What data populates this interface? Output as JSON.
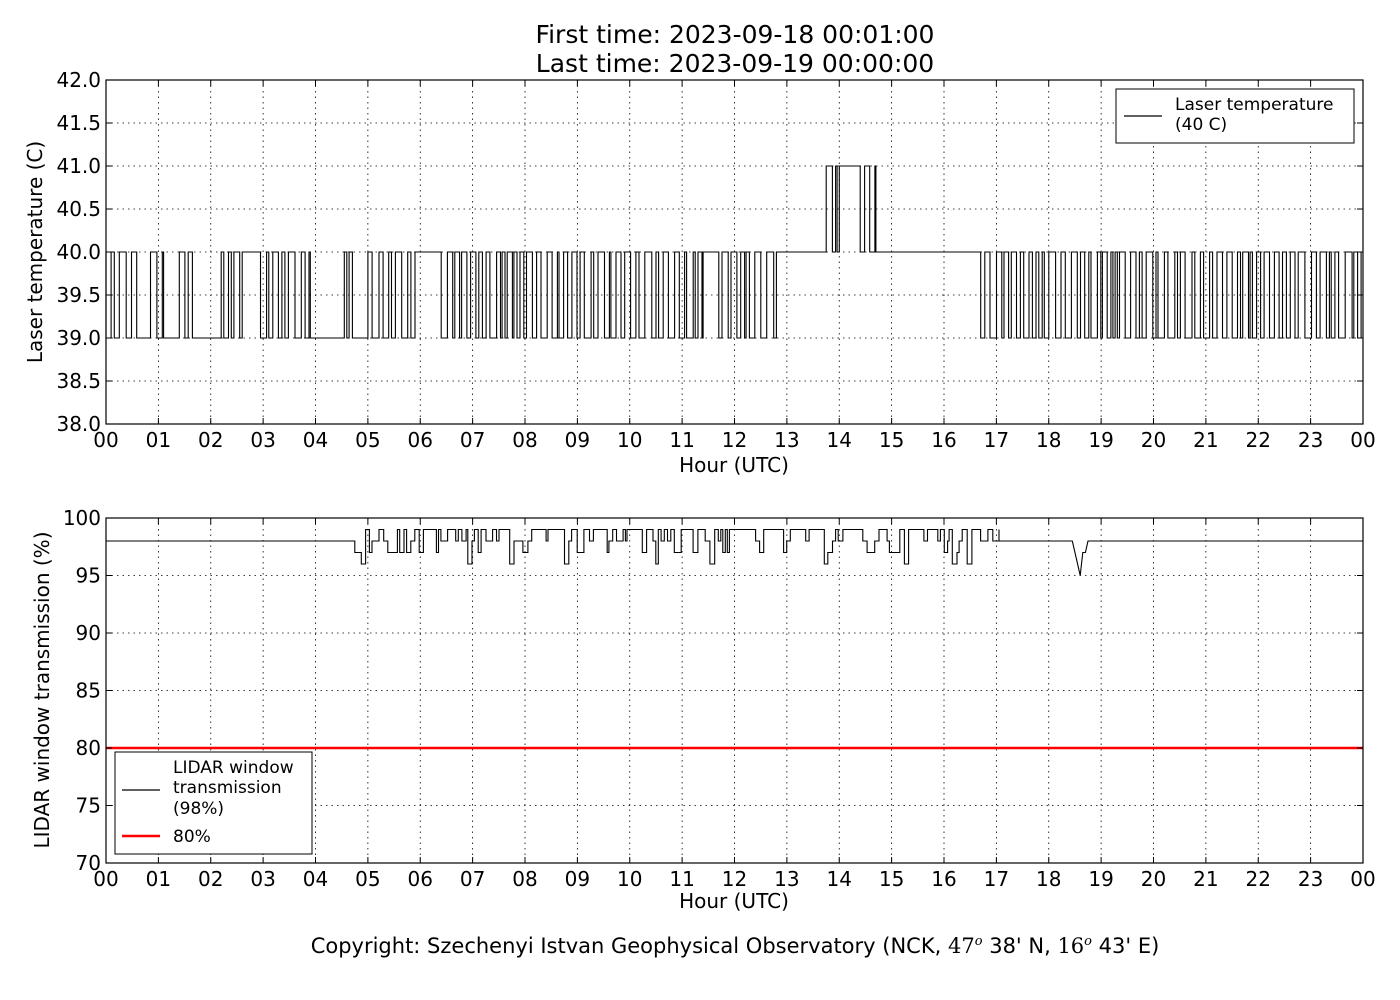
{
  "figure": {
    "title_line1": "First time: 2023-09-18 00:01:00",
    "title_line2": "Last time: 2023-09-19 00:00:00",
    "copyright": {
      "prefix": "Copyright: Szechenyi Istvan Geophysical Observatory (NCK, ",
      "lat_deg": "47",
      "lat_min": " 38' N, ",
      "lon_deg": "16",
      "lon_min": " 43' E)",
      "degree_symbol": "o"
    }
  },
  "chart_data": [
    {
      "type": "line",
      "title": "",
      "xlabel": "Hour (UTC)",
      "ylabel": "Laser temperature (C)",
      "xlim": [
        0,
        24
      ],
      "ylim": [
        38.0,
        42.0
      ],
      "x_tick_labels": [
        "00",
        "01",
        "02",
        "03",
        "04",
        "05",
        "06",
        "07",
        "08",
        "09",
        "10",
        "11",
        "12",
        "13",
        "14",
        "15",
        "16",
        "17",
        "18",
        "19",
        "20",
        "21",
        "22",
        "23",
        "00"
      ],
      "y_tick_labels": [
        "38.0",
        "38.5",
        "39.0",
        "39.5",
        "40.0",
        "40.5",
        "41.0",
        "41.5",
        "42.0"
      ],
      "grid": true,
      "legend": {
        "position": "top-right",
        "entries": [
          {
            "label_line1": "Laser temperature",
            "label_line2": "(40 C)",
            "color": "#000000"
          }
        ]
      },
      "series": [
        {
          "name": "Laser temperature (40 C)",
          "color": "#000000",
          "low_level": 39.0,
          "high_level": 40.0,
          "peak_level": 41.0,
          "segments": [
            {
              "start": 0.0,
              "end": 0.6,
              "mode": "toggle"
            },
            {
              "start": 0.6,
              "end": 0.85,
              "mode": "low"
            },
            {
              "start": 0.85,
              "end": 1.1,
              "mode": "toggle"
            },
            {
              "start": 1.1,
              "end": 1.4,
              "mode": "low"
            },
            {
              "start": 1.4,
              "end": 1.65,
              "mode": "toggle"
            },
            {
              "start": 1.65,
              "end": 2.2,
              "mode": "low"
            },
            {
              "start": 2.2,
              "end": 2.6,
              "mode": "toggle"
            },
            {
              "start": 2.6,
              "end": 2.95,
              "mode": "high"
            },
            {
              "start": 2.95,
              "end": 3.9,
              "mode": "toggle"
            },
            {
              "start": 3.9,
              "end": 4.55,
              "mode": "low"
            },
            {
              "start": 4.55,
              "end": 4.75,
              "mode": "toggle"
            },
            {
              "start": 4.75,
              "end": 5.0,
              "mode": "low"
            },
            {
              "start": 5.0,
              "end": 5.9,
              "mode": "toggle"
            },
            {
              "start": 5.9,
              "end": 6.4,
              "mode": "high"
            },
            {
              "start": 6.4,
              "end": 11.4,
              "mode": "toggle"
            },
            {
              "start": 11.4,
              "end": 11.7,
              "mode": "high"
            },
            {
              "start": 11.7,
              "end": 12.8,
              "mode": "toggle"
            },
            {
              "start": 12.8,
              "end": 13.75,
              "mode": "high"
            },
            {
              "start": 13.75,
              "end": 14.0,
              "mode": "toggle_up"
            },
            {
              "start": 14.0,
              "end": 14.4,
              "mode": "peak"
            },
            {
              "start": 14.4,
              "end": 14.7,
              "mode": "toggle_up"
            },
            {
              "start": 14.7,
              "end": 16.7,
              "mode": "high"
            },
            {
              "start": 16.7,
              "end": 24.0,
              "mode": "toggle"
            }
          ]
        }
      ]
    },
    {
      "type": "line",
      "title": "",
      "xlabel": "Hour (UTC)",
      "ylabel": "LIDAR window transmission (%)",
      "xlim": [
        0,
        24
      ],
      "ylim": [
        70,
        100
      ],
      "x_tick_labels": [
        "00",
        "01",
        "02",
        "03",
        "04",
        "05",
        "06",
        "07",
        "08",
        "09",
        "10",
        "11",
        "12",
        "13",
        "14",
        "15",
        "16",
        "17",
        "18",
        "19",
        "20",
        "21",
        "22",
        "23",
        "00"
      ],
      "y_tick_labels": [
        "70",
        "75",
        "80",
        "85",
        "90",
        "95",
        "100"
      ],
      "grid": true,
      "legend": {
        "position": "lower-left",
        "entries": [
          {
            "label_lines": [
              "LIDAR window",
              "transmission",
              "(98%)"
            ],
            "color": "#000000"
          },
          {
            "label_lines": [
              "80%"
            ],
            "color": "#ff0000"
          }
        ]
      },
      "series": [
        {
          "name": "LIDAR window transmission (98%)",
          "color": "#000000",
          "baseline": 98,
          "noisy_interval": [
            4.75,
            17.05
          ],
          "noise_upper": 99,
          "noise_lower_values": [
            97,
            96
          ],
          "dip": {
            "x": [
              18.45,
              18.55,
              18.6,
              18.65,
              18.7,
              18.75
            ],
            "y": [
              98,
              96,
              95,
              97,
              97,
              98
            ]
          }
        },
        {
          "name": "80%",
          "color": "#ff0000",
          "x": [
            0,
            24
          ],
          "y": [
            80,
            80
          ]
        }
      ]
    }
  ]
}
